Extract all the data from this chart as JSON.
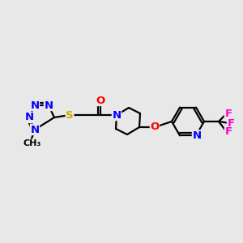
{
  "bg_color": "#e8e8e8",
  "colors": {
    "bond": "#000000",
    "N": "#0000ff",
    "O": "#ff0000",
    "S": "#ccaa00",
    "F": "#ff00cc",
    "C": "#000000"
  },
  "bond_lw": 1.6,
  "font_size": 9.5,
  "font_size_small": 8.0
}
